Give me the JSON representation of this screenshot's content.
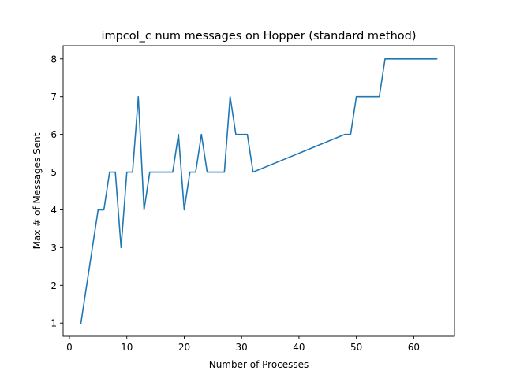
{
  "chart_data": {
    "type": "line",
    "title": "impcol_c num messages on Hopper (standard method)",
    "xlabel": "Number of Processes",
    "ylabel": "Max # of Messages Sent",
    "xlim": [
      -1.1,
      67.1
    ],
    "ylim": [
      0.65,
      8.35
    ],
    "xticks": [
      0,
      10,
      20,
      30,
      40,
      50,
      60
    ],
    "yticks": [
      1,
      2,
      3,
      4,
      5,
      6,
      7,
      8
    ],
    "grid": false,
    "legend": "none",
    "series": [
      {
        "color": "#1f77b4",
        "x": [
          2,
          5,
          6,
          7,
          8,
          9,
          10,
          11,
          12,
          13,
          14,
          15,
          16,
          17,
          18,
          19,
          20,
          21,
          22,
          23,
          24,
          25,
          26,
          27,
          28,
          29,
          30,
          31,
          32,
          48,
          49,
          50,
          51,
          52,
          53,
          54,
          55,
          56,
          57,
          58,
          59,
          60,
          61,
          62,
          63,
          64
        ],
        "y": [
          1,
          4,
          4,
          5,
          5,
          3,
          5,
          5,
          7,
          4,
          5,
          5,
          5,
          5,
          5,
          6,
          4,
          5,
          5,
          6,
          5,
          5,
          5,
          5,
          7,
          6,
          6,
          6,
          5,
          6,
          6,
          7,
          7,
          7,
          7,
          7,
          8,
          8,
          8,
          8,
          8,
          8,
          8,
          8,
          8,
          8
        ]
      }
    ]
  }
}
